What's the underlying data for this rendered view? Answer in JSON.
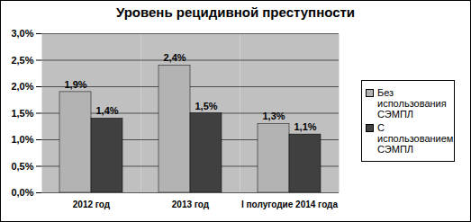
{
  "chart_data": {
    "type": "bar",
    "title": "Уровень рецидивной преступности",
    "categories": [
      "2012 год",
      "2013 год",
      "I полугодие 2014 года"
    ],
    "series": [
      {
        "name": "Без использования СЭМПЛ",
        "color": "#b3b3b3",
        "values": [
          1.9,
          2.4,
          1.3
        ],
        "value_labels": [
          "1,9%",
          "2,4%",
          "1,3%"
        ]
      },
      {
        "name": "С использованием СЭМПЛ",
        "color": "#404040",
        "values": [
          1.4,
          1.5,
          1.1
        ],
        "value_labels": [
          "1,4%",
          "1,5%",
          "1,1%"
        ]
      }
    ],
    "ylim": [
      0,
      3
    ],
    "yticks": [
      {
        "value": 0,
        "label": "0,0%"
      },
      {
        "value": 0.5,
        "label": "0,5%"
      },
      {
        "value": 1,
        "label": "1,0%"
      },
      {
        "value": 1.5,
        "label": "1,5%"
      },
      {
        "value": 2,
        "label": "2,0%"
      },
      {
        "value": 2.5,
        "label": "2,5%"
      },
      {
        "value": 3,
        "label": "3,0%"
      }
    ],
    "grid": true,
    "legend": "right",
    "data_labels": true
  }
}
